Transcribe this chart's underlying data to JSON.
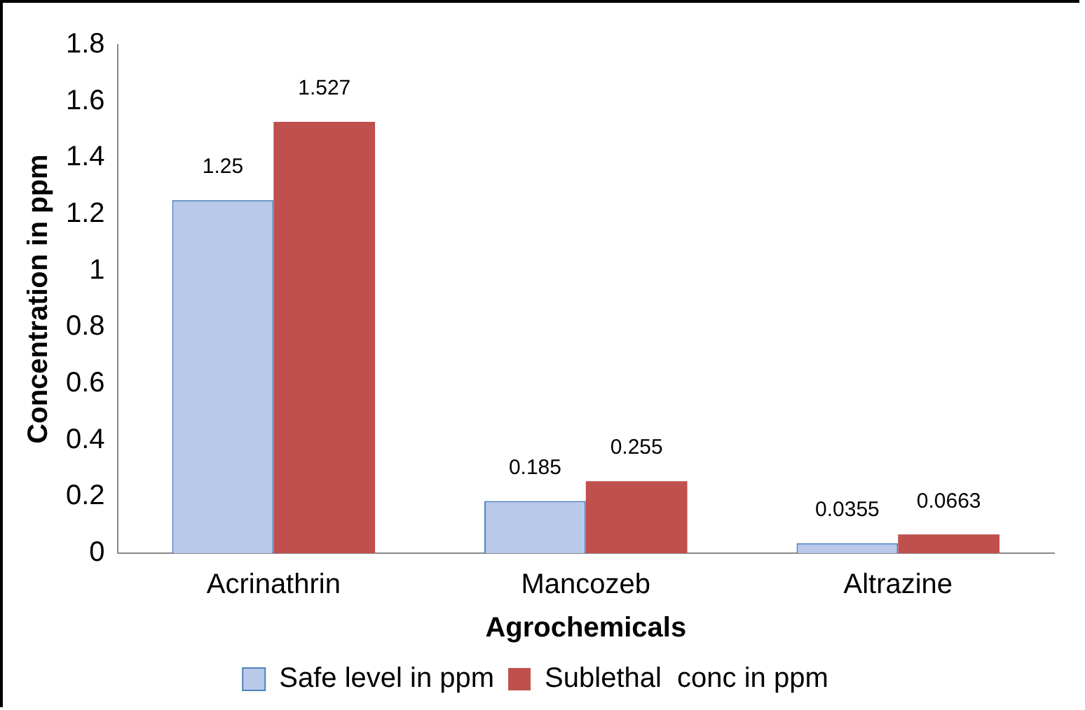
{
  "chart_data": {
    "type": "bar",
    "xlabel": "Agrochemicals",
    "ylabel": "Concentration in ppm",
    "categories": [
      "Acrinathrin",
      "Mancozeb",
      "Altrazine"
    ],
    "series": [
      {
        "name": "Safe level in ppm",
        "color": "#b8c9ea",
        "values": [
          1.25,
          0.185,
          0.0355
        ]
      },
      {
        "name": "Sublethal  conc in ppm",
        "color": "#c0504d",
        "values": [
          1.527,
          0.255,
          0.0663
        ]
      }
    ],
    "ylim": [
      0,
      1.8
    ],
    "yticks": [
      0,
      0.2,
      0.4,
      0.6,
      0.8,
      1,
      1.2,
      1.4,
      1.6,
      1.8
    ],
    "grid": false,
    "legend": "bottom",
    "data_labels": true
  }
}
